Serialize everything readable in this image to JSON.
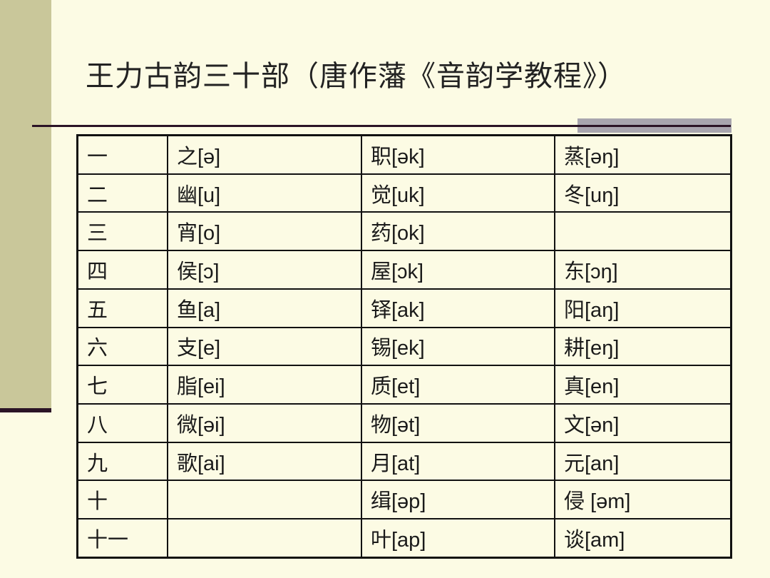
{
  "title": "王力古韵三十部（唐作藩《音韵学教程》）",
  "colors": {
    "sidebar": "#c9c79a",
    "rule": "#2b1426",
    "accent_block": "#a8a5ae",
    "background": "#fcfbe4"
  },
  "table": {
    "rows": [
      [
        "一",
        "之[ə]",
        "职[ək]",
        "蒸[əŋ]"
      ],
      [
        "二",
        "幽[u]",
        "觉[uk]",
        "冬[uŋ]"
      ],
      [
        "三",
        "宵[o]",
        "药[ok]",
        ""
      ],
      [
        "四",
        "侯[ɔ]",
        "屋[ɔk]",
        "东[ɔŋ]"
      ],
      [
        "五",
        "鱼[a]",
        "铎[ak]",
        "阳[aŋ]"
      ],
      [
        "六",
        "支[e]",
        "锡[ek]",
        "耕[eŋ]"
      ],
      [
        "七",
        "脂[ei]",
        "质[et]",
        "真[en]"
      ],
      [
        "八",
        "微[əi]",
        "物[ət]",
        "文[ən]"
      ],
      [
        "九",
        "歌[ai]",
        "月[at]",
        "元[an]"
      ],
      [
        "十",
        "",
        "缉[əp]",
        "侵 [əm]"
      ],
      [
        "十一",
        "",
        "叶[ap]",
        "谈[am]"
      ]
    ]
  }
}
